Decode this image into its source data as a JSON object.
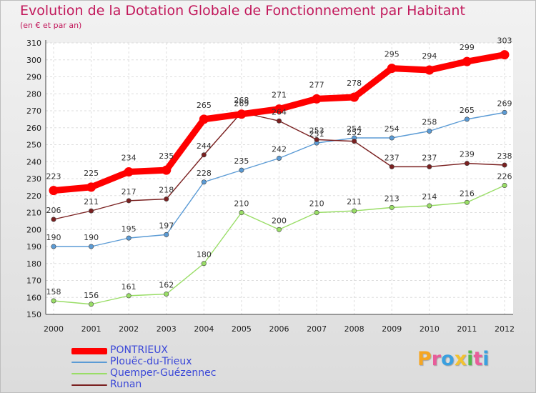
{
  "title": "Evolution de la Dotation Globale de Fonctionnement par Habitant",
  "subtitle": "(en € et par an)",
  "logo": {
    "text": "Proxiti",
    "colors": [
      "#f5a623",
      "#e85d9a",
      "#3aa0e0",
      "#f2c230",
      "#52b84a",
      "#e85d9a",
      "#3aa0e0"
    ]
  },
  "chart_data": {
    "type": "line",
    "title": "Evolution de la Dotation Globale de Fonctionnement par Habitant",
    "subtitle": "(en € et par an)",
    "x": [
      "2000",
      "2001",
      "2002",
      "2003",
      "2004",
      "2005",
      "2006",
      "2007",
      "2008",
      "2009",
      "2010",
      "2011",
      "2012"
    ],
    "ylim": [
      150,
      310
    ],
    "yticks": [
      150,
      160,
      170,
      180,
      190,
      200,
      210,
      220,
      230,
      240,
      250,
      260,
      270,
      280,
      290,
      300,
      310
    ],
    "grid": true,
    "legend_position": "bottom-left",
    "series": [
      {
        "name": "PONTRIEUX",
        "color": "#ff0000",
        "values": [
          223,
          225,
          234,
          235,
          265,
          268,
          271,
          277,
          278,
          295,
          294,
          299,
          303
        ]
      },
      {
        "name": "Plouëc-du-Trieux",
        "color": "#5b9bd5",
        "values": [
          190,
          190,
          195,
          197,
          228,
          235,
          242,
          251,
          254,
          254,
          258,
          265,
          269
        ]
      },
      {
        "name": "Quemper-Guézennec",
        "color": "#99dd66",
        "values": [
          158,
          156,
          161,
          162,
          180,
          210,
          200,
          210,
          211,
          213,
          214,
          216,
          226
        ]
      },
      {
        "name": "Runan",
        "color": "#7a2020",
        "values": [
          206,
          211,
          217,
          218,
          244,
          269,
          264,
          253,
          252,
          237,
          237,
          239,
          238
        ]
      }
    ]
  }
}
